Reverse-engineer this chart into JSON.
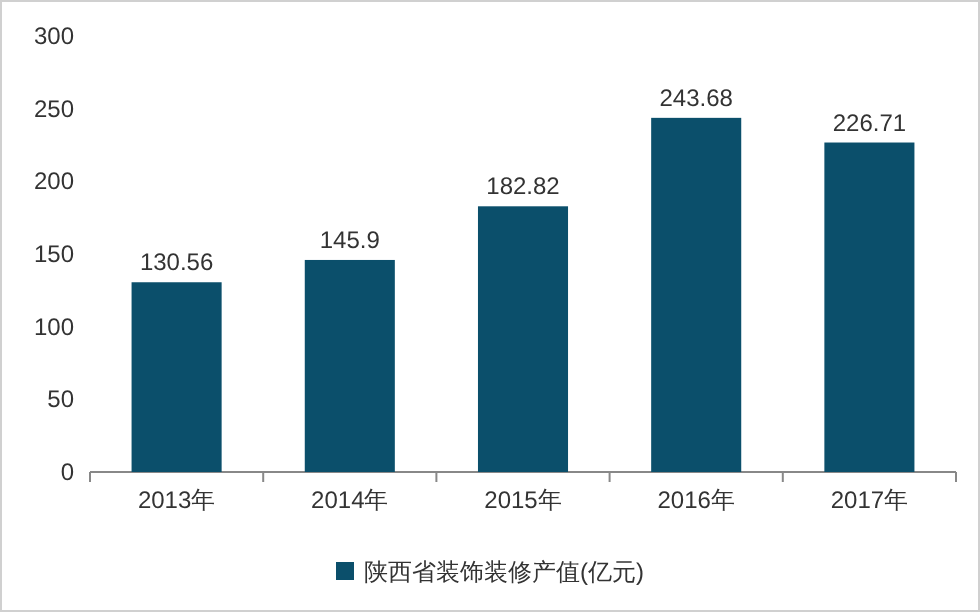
{
  "chart_data": {
    "type": "bar",
    "categories": [
      "2013年",
      "2014年",
      "2015年",
      "2016年",
      "2017年"
    ],
    "series": [
      {
        "name": "陕西省装饰装修产值(亿元)",
        "color": "#0b4f6b",
        "values": [
          130.56,
          145.9,
          182.82,
          243.68,
          226.71
        ]
      }
    ],
    "ylim": [
      0,
      300
    ],
    "yticks": [
      0,
      50,
      100,
      150,
      200,
      250,
      300
    ],
    "data_labels": true,
    "legend": "bottom",
    "grid": false
  }
}
